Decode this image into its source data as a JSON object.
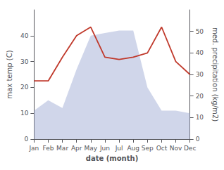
{
  "chart_data": {
    "type": "line",
    "categories": [
      "Jan",
      "Feb",
      "Mar",
      "Apr",
      "May",
      "Jun",
      "Jul",
      "Aug",
      "Sep",
      "Oct",
      "Nov",
      "Dec"
    ],
    "xlabel": "date (month)",
    "ylabel": "max temp (C)",
    "y2label": "med. precipitation (kg/m2)",
    "ylim": [
      0,
      50
    ],
    "yticks": [
      0,
      10,
      20,
      30,
      40
    ],
    "y2lim": [
      0,
      60
    ],
    "y2ticks": [
      0,
      10,
      20,
      30,
      40,
      50
    ],
    "grid": false,
    "series": [
      {
        "type": "area",
        "color": "#aab4d8",
        "values": [
          11,
          15,
          12,
          27,
          40,
          41,
          42,
          42,
          20,
          11,
          11,
          10
        ]
      },
      {
        "type": "line",
        "color": "#c0392b",
        "axis": "y2",
        "values": [
          27,
          27,
          38,
          48,
          52,
          38,
          37,
          38,
          40,
          52,
          36,
          30
        ]
      }
    ]
  }
}
